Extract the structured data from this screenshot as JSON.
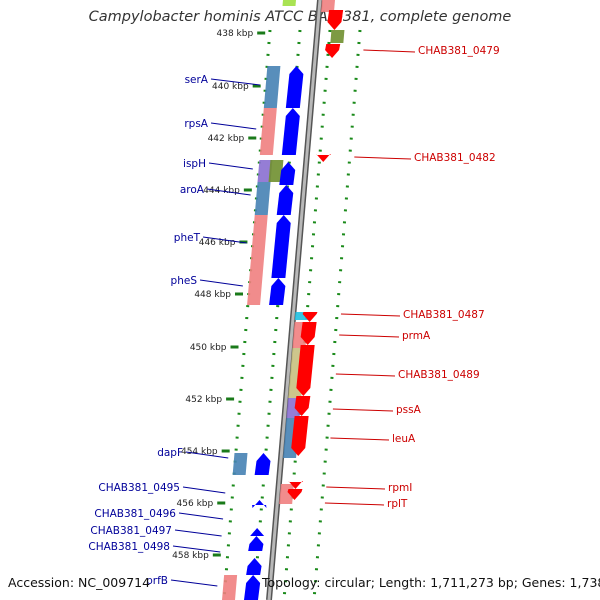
{
  "title": "Campylobacter hominis ATCC BAA-381, complete genome",
  "footer": {
    "accession": "Accession: NC_009714",
    "info": "Topology: circular; Length: 1,711,273 bp; Genes: 1,738"
  },
  "colors": {
    "forward_gene": "#0000ff",
    "reverse_gene": "#ff0000",
    "forward_label": "#000099",
    "reverse_label": "#cc0000",
    "backbone": "#9a9a9a",
    "ticks": "#1a7a1a",
    "cog_salmon": "#f08080",
    "cog_steelblue": "#4682b4",
    "cog_khaki": "#c8c080",
    "cog_purple": "#8a6fd0",
    "cog_olive": "#6f8f2f",
    "cog_cyan": "#20c0e0",
    "cog_lime": "#a0e040"
  },
  "scale": {
    "unit": "kbp",
    "ticks": [
      438,
      440,
      442,
      444,
      446,
      448,
      450,
      452,
      454,
      456,
      458
    ]
  },
  "forward_labels": [
    "serA",
    "rpsA",
    "ispH",
    "aroA",
    "pheT",
    "pheS",
    "dapF",
    "CHAB381_0495",
    "CHAB381_0496",
    "CHAB381_0497",
    "CHAB381_0498",
    "prfB"
  ],
  "reverse_labels": [
    "CHAB381_0479",
    "CHAB381_0482",
    "CHAB381_0487",
    "prmA",
    "CHAB381_0489",
    "pssA",
    "leuA",
    "rpmI",
    "rplT"
  ]
}
